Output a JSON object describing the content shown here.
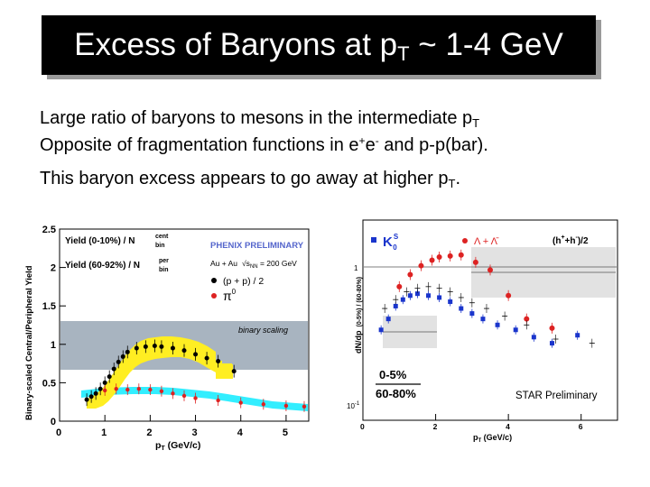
{
  "slide": {
    "title_main": "Excess of Baryons at p",
    "title_sub": "T",
    "title_tail": " ~ 1-4 GeV",
    "bullet1_main": "Large ratio of baryons to mesons in the intermediate p",
    "bullet1_sub": "T",
    "bullet2_a": "Opposite of fragmentation functions in e",
    "bullet2_sup1": "+",
    "bullet2_b": "e",
    "bullet2_sup2": "-",
    "bullet2_c": " and p-p(bar).",
    "bullet3_main": "This baryon excess appears to go away at higher p",
    "bullet3_sub": "T",
    "bullet3_tail": "."
  },
  "left_plot": {
    "ylabel": "Binary-scaled Central/Peripheral Yield",
    "xlabel": "p",
    "xlabel_sub": "T",
    "xlabel_unit": " (GeV/c)",
    "legend_line1": "Yield (0-10%) / N",
    "legend_line2": "Yield (60-92%) / N",
    "legend_sup1": "cent",
    "legend_sup2": "per",
    "legend_sub": "bin",
    "preliminary": "PHENIX PRELIMINARY",
    "system": "Au + Au",
    "energy_label": "√s",
    "energy_sub": "NN",
    "energy_tail": " = 200 GeV",
    "series1": "(p + p) / 2",
    "series2": "π",
    "series2_sup": "0",
    "band_label": "binary scaling",
    "x_ticks": [
      "0",
      "1",
      "2",
      "3",
      "4",
      "5"
    ],
    "y_ticks": [
      "0",
      "0.5",
      "1",
      "1.5",
      "2",
      "2.5"
    ],
    "colors": {
      "band": "#a8b4c0",
      "yellow": "#ffee22",
      "cyan": "#33eeff",
      "red": "#dd2222"
    }
  },
  "right_plot": {
    "legend_k0": "K",
    "legend_k0_sup": "S",
    "legend_k0_sub": "0",
    "legend_lambda": "Λ + Λ̄",
    "legend_h": "(h",
    "legend_h_sup1": "+",
    "legend_h_mid": "+h",
    "legend_h_sup2": "-",
    "legend_h_tail": ")/2",
    "ylabel_main": "dN/dp",
    "ylabel_frac": "(0-5%) / (60-80%)",
    "centrality1": "0-5%",
    "centrality2": "60-80%",
    "star": "STAR Preliminary",
    "xlabel": "p",
    "xlabel_sub": "T",
    "xlabel_unit": " (GeV/c)",
    "y_tick_1": "1",
    "y_tick_low": "10",
    "y_tick_low_sup": "-1",
    "x_ticks": [
      "0",
      "2",
      "4",
      "6"
    ],
    "colors": {
      "blue": "#1a35cc",
      "red": "#dd2222",
      "band": "#e2e2e2"
    }
  }
}
